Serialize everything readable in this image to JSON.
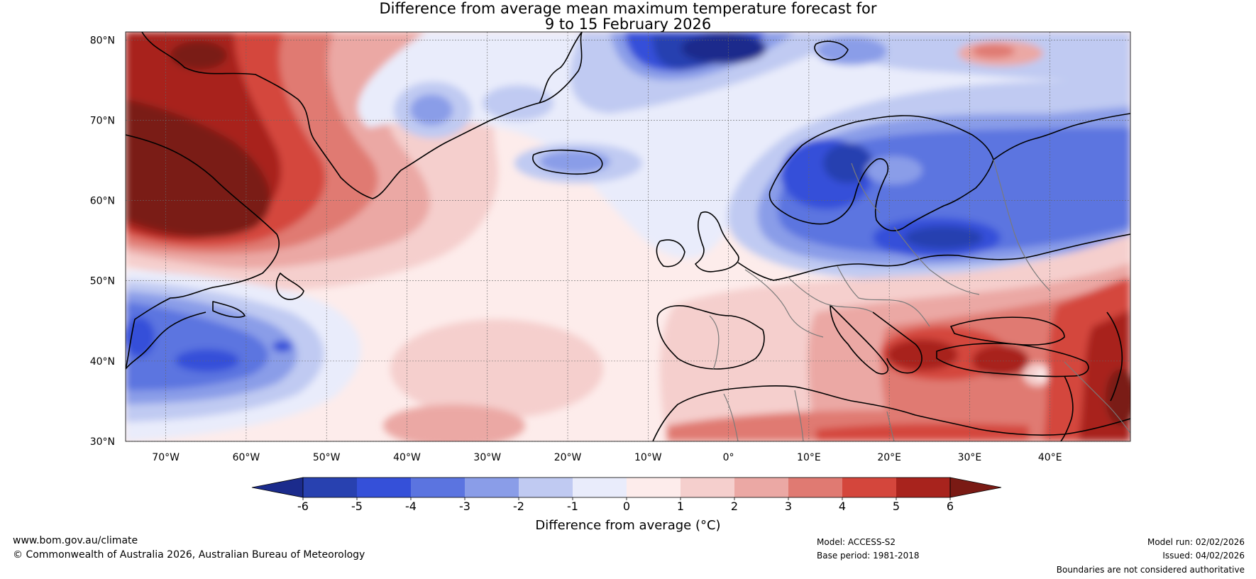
{
  "title": {
    "line1": "Difference from average mean maximum temperature forecast for",
    "line2": "9 to 15 February 2026"
  },
  "map": {
    "lat_ticks": [
      "80°N",
      "70°N",
      "60°N",
      "50°N",
      "40°N",
      "30°N"
    ],
    "lon_ticks": [
      "70°W",
      "60°W",
      "50°W",
      "40°W",
      "30°W",
      "20°W",
      "10°W",
      "0°",
      "10°E",
      "20°E",
      "30°E",
      "40°E"
    ],
    "lat_values": [
      80,
      70,
      60,
      50,
      40,
      30
    ],
    "lon_values": [
      -70,
      -60,
      -50,
      -40,
      -30,
      -20,
      -10,
      0,
      10,
      20,
      30,
      40
    ],
    "lat_range": [
      30,
      81
    ],
    "lon_range": [
      -75,
      50
    ],
    "colors": {
      "-6": "#1b2b8c",
      "-5": "#2841b0",
      "-4": "#3550d9",
      "-3": "#5b74e0",
      "-2": "#8a9de8",
      "-1": "#c0caf2",
      "0": "#e9ecfb",
      "1": "#fdeceb",
      "2": "#f5cfcd",
      "3": "#eba8a4",
      "4": "#e07a72",
      "5": "#d4463c",
      "6": "#a8231d",
      "7": "#7a1a14"
    }
  },
  "colorbar": {
    "label": "Difference from average (°C)",
    "ticks": [
      "-6",
      "-5",
      "-4",
      "-3",
      "-2",
      "-1",
      "0",
      "1",
      "2",
      "3",
      "4",
      "5",
      "6"
    ],
    "colors": [
      "#2841b0",
      "#3550d9",
      "#5b74e0",
      "#8a9de8",
      "#c0caf2",
      "#e9ecfb",
      "#fdeceb",
      "#f5cfcd",
      "#eba8a4",
      "#e07a72",
      "#d4463c",
      "#a8231d"
    ],
    "under_color": "#1b2b8c",
    "over_color": "#7a1a14"
  },
  "footer": {
    "website": "www.bom.gov.au/climate",
    "copyright": "© Commonwealth of Australia 2026, Australian Bureau of Meteorology",
    "model": "Model: ACCESS-S2",
    "base_period": "Base period: 1981-2018",
    "model_run": "Model run: 02/02/2026",
    "issued": "Issued: 04/02/2026",
    "disclaimer": "Boundaries are not considered authoritative"
  }
}
